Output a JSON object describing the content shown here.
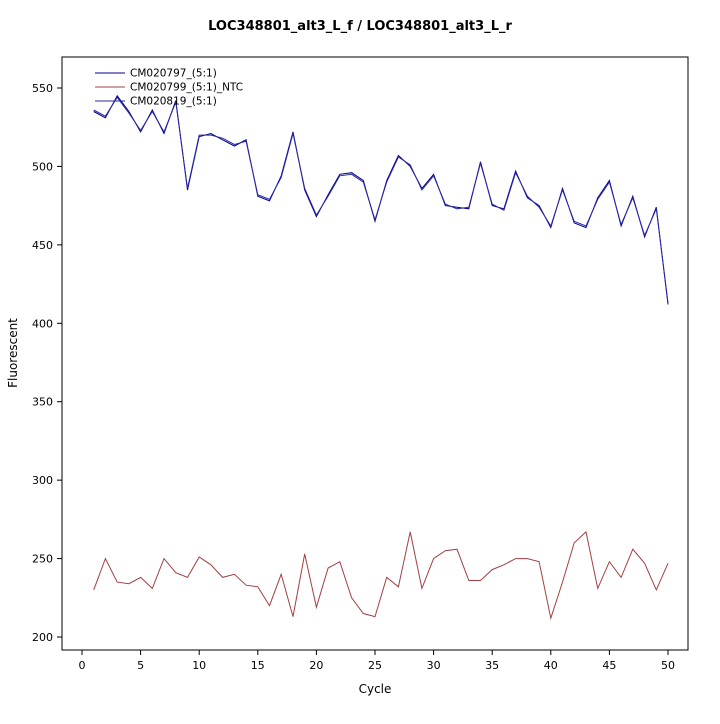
{
  "title": "LOC348801_alt3_L_f / LOC348801_alt3_L_r",
  "chart_data": {
    "type": "line",
    "title": "LOC348801_alt3_L_f / LOC348801_alt3_L_r",
    "xlabel": "Cycle",
    "ylabel": "Fluorescent",
    "xlim": [
      0,
      50
    ],
    "ylim": [
      200,
      560
    ],
    "x_ticks": [
      0,
      5,
      10,
      15,
      20,
      25,
      30,
      35,
      40,
      45,
      50
    ],
    "y_ticks": [
      200,
      250,
      300,
      350,
      400,
      450,
      500,
      550
    ],
    "grid": false,
    "legend_position": "top-left",
    "x": [
      1,
      2,
      3,
      4,
      5,
      6,
      7,
      8,
      9,
      10,
      11,
      12,
      13,
      14,
      15,
      16,
      17,
      18,
      19,
      20,
      21,
      22,
      23,
      24,
      25,
      26,
      27,
      28,
      29,
      30,
      31,
      32,
      33,
      34,
      35,
      36,
      37,
      38,
      39,
      40,
      41,
      42,
      43,
      44,
      45,
      46,
      47,
      48,
      49,
      50
    ],
    "series": [
      {
        "name": "CM020797_(5:1)",
        "color": "#00008B",
        "values": [
          535,
          531,
          545,
          535,
          522,
          536,
          521,
          542,
          485,
          519,
          521,
          517,
          513,
          517,
          481,
          478,
          494,
          522,
          485,
          468,
          482,
          495,
          496,
          491,
          465,
          491,
          507,
          500,
          486,
          495,
          475,
          474,
          473,
          503,
          475,
          473,
          497,
          480,
          475,
          461,
          486,
          464,
          461,
          480,
          491,
          462,
          481,
          455,
          474,
          412
        ]
      },
      {
        "name": "CM020799_(5:1)_NTC",
        "color": "#A14040",
        "values": [
          230,
          250,
          235,
          234,
          238,
          231,
          250,
          241,
          238,
          251,
          246,
          238,
          240,
          233,
          232,
          220,
          240,
          213,
          253,
          219,
          244,
          248,
          225,
          215,
          213,
          238,
          232,
          267,
          231,
          250,
          255,
          256,
          236,
          236,
          243,
          246,
          250,
          250,
          248,
          212,
          235,
          260,
          267,
          231,
          248,
          238,
          256,
          247,
          230,
          247
        ]
      },
      {
        "name": "CM020819_(5:1)",
        "color": "#2929A3",
        "values": [
          536,
          532,
          544,
          534,
          523,
          535,
          522,
          541,
          486,
          520,
          520,
          518,
          514,
          516,
          482,
          479,
          493,
          521,
          486,
          469,
          481,
          494,
          495,
          490,
          466,
          490,
          506,
          501,
          485,
          494,
          476,
          473,
          474,
          502,
          476,
          472,
          496,
          481,
          474,
          462,
          485,
          465,
          462,
          479,
          490,
          463,
          480,
          456,
          473,
          413
        ]
      }
    ]
  }
}
